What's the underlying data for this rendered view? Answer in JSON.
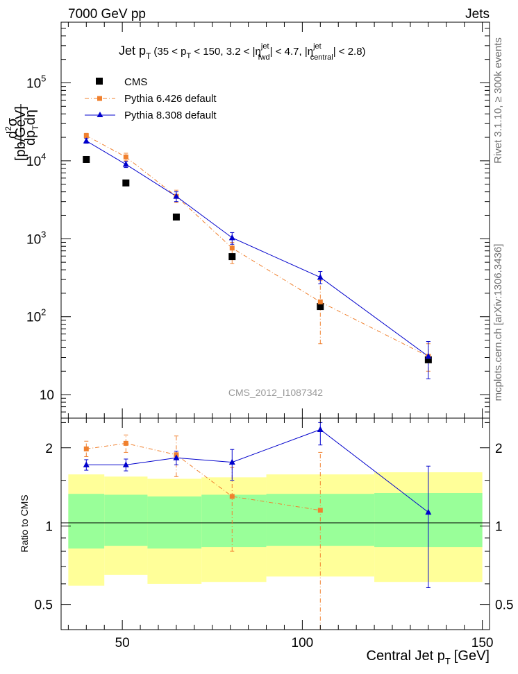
{
  "header": {
    "energy": "7000 GeV pp",
    "process": "Jets"
  },
  "side_labels": {
    "rivet": "Rivet 3.1.10, ≥ 300k events",
    "mcplots": "mcplots.cern.ch [arXiv:1306.3436]"
  },
  "analysis_id": "CMS_2012_I1087342",
  "colors": {
    "cms": "#000000",
    "pythia6": "#f0802e",
    "pythia8": "#0000cc",
    "band_outer": "#ffff99",
    "band_inner": "#99ff99"
  },
  "chart_data": [
    {
      "type": "scatter",
      "panel": "main",
      "title": "Jet pT (35 < pT < 150, 3.2 < |η_fwd^jet| < 4.7, |η_central^jet| < 2.8)",
      "title_parts": {
        "main": "Jet p",
        "sub_T": "T",
        "range": "(35 < p",
        "mid1": " < 150, 3.2 < |η",
        "sup_jet": "jet",
        "sub_fwd": "fwd",
        "mid2": "| < 4.7, |η",
        "sub_central": "central",
        "end": "| < 2.8)"
      },
      "ylabel": "d²σ / dpT dη [pb/GeV]",
      "ylabel_parts": {
        "num": "d",
        "sup2": "2",
        "sigma": "σ",
        "den": "dp",
        "sub_T": "T",
        "deta": "dη",
        "units": "[pb/GeV]"
      },
      "yscale": "log",
      "ylim": [
        5,
        600000
      ],
      "xlim": [
        33,
        152
      ],
      "yticks": [
        {
          "value": 100000,
          "base": "10",
          "exp": "5"
        },
        {
          "value": 10000,
          "base": "10",
          "exp": "4"
        },
        {
          "value": 1000,
          "base": "10",
          "exp": "3"
        },
        {
          "value": 100,
          "base": "10",
          "exp": "2"
        },
        {
          "value": 10,
          "base": "10",
          "exp": ""
        }
      ],
      "legend_position": "top-left",
      "series": [
        {
          "name": "CMS",
          "marker": "square",
          "x": [
            40,
            51,
            65,
            80.5,
            105,
            135
          ],
          "y": [
            10400,
            5200,
            1900,
            590,
            135,
            28
          ],
          "xerr": [
            5,
            6,
            7.5,
            9.5,
            15,
            15
          ]
        },
        {
          "name": "Pythia 6.426 default",
          "marker": "square-small",
          "line": "dash-dot",
          "x": [
            40,
            51,
            65,
            80.5,
            105,
            135
          ],
          "y": [
            21000,
            11200,
            3500,
            760,
            155,
            31
          ],
          "err": [
            [
              19500,
              22500
            ],
            [
              10000,
              12500
            ],
            [
              2900,
              4200
            ],
            [
              480,
              900
            ],
            [
              45,
              290
            ],
            [
              20,
              45
            ]
          ]
        },
        {
          "name": "Pythia 8.308 default",
          "marker": "triangle",
          "line": "solid",
          "x": [
            40,
            51,
            65,
            80.5,
            105,
            135
          ],
          "y": [
            18000,
            9000,
            3500,
            1030,
            320,
            31
          ],
          "err": [
            [
              16800,
              19500
            ],
            [
              8200,
              9800
            ],
            [
              3000,
              4000
            ],
            [
              850,
              1200
            ],
            [
              265,
              380
            ],
            [
              16,
              48
            ]
          ]
        }
      ]
    },
    {
      "type": "scatter",
      "panel": "ratio",
      "ylabel": "Ratio to CMS",
      "xlabel": "Central Jet pT [GeV]",
      "xlabel_parts": {
        "main": "Central Jet p",
        "sub_T": "T",
        "units": "[GeV]"
      },
      "yscale": "log",
      "ylim": [
        0.4,
        2.6
      ],
      "xlim": [
        33,
        152
      ],
      "yticks": [
        0.5,
        1,
        2
      ],
      "ytick_labels": [
        "0.5",
        "1",
        "2"
      ],
      "xticks": [
        50,
        100,
        150
      ],
      "xtick_labels": [
        "50",
        "100",
        "150"
      ],
      "bands": [
        {
          "x0": 35,
          "x1": 45,
          "outer": [
            0.59,
            1.58
          ],
          "inner": [
            0.82,
            1.33
          ]
        },
        {
          "x0": 45,
          "x1": 57,
          "outer": [
            0.65,
            1.55
          ],
          "inner": [
            0.84,
            1.32
          ]
        },
        {
          "x0": 57,
          "x1": 72,
          "outer": [
            0.6,
            1.52
          ],
          "inner": [
            0.82,
            1.3
          ]
        },
        {
          "x0": 72,
          "x1": 90,
          "outer": [
            0.61,
            1.54
          ],
          "inner": [
            0.83,
            1.32
          ]
        },
        {
          "x0": 90,
          "x1": 120,
          "outer": [
            0.64,
            1.58
          ],
          "inner": [
            0.84,
            1.33
          ]
        },
        {
          "x0": 120,
          "x1": 150,
          "outer": [
            0.61,
            1.61
          ],
          "inner": [
            0.83,
            1.34
          ]
        }
      ],
      "series": [
        {
          "name": "Pythia 6.426 default",
          "x": [
            40,
            51,
            65,
            80.5,
            105
          ],
          "y": [
            1.98,
            2.08,
            1.88,
            1.3,
            1.15
          ],
          "err": [
            [
              1.85,
              2.12
            ],
            [
              1.92,
              2.24
            ],
            [
              1.55,
              2.22
            ],
            [
              0.8,
              1.68
            ],
            [
              0.35,
              1.92
            ]
          ]
        },
        {
          "name": "Pythia 8.308 default",
          "x": [
            40,
            51,
            65,
            80.5,
            105,
            135
          ],
          "y": [
            1.72,
            1.72,
            1.83,
            1.76,
            2.35,
            1.13
          ],
          "err": [
            [
              1.64,
              1.8
            ],
            [
              1.63,
              1.81
            ],
            [
              1.72,
              1.94
            ],
            [
              1.5,
              1.97
            ],
            [
              2.05,
              2.5
            ],
            [
              0.58,
              1.7
            ]
          ]
        }
      ]
    }
  ]
}
